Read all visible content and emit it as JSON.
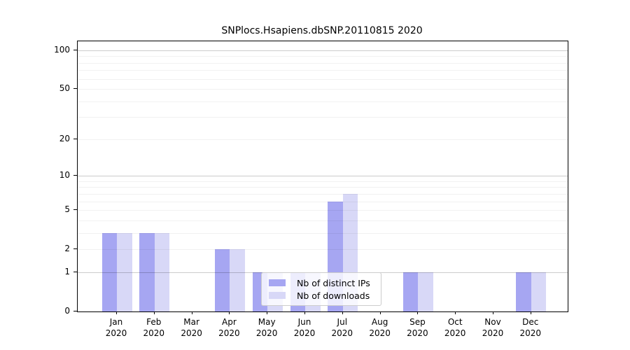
{
  "chart_data": {
    "type": "bar",
    "title": "SNPlocs.Hsapiens.dbSNP.20110815 2020",
    "year_label": "2020",
    "categories": [
      "Jan",
      "Feb",
      "Mar",
      "Apr",
      "May",
      "Jun",
      "Jul",
      "Aug",
      "Sep",
      "Oct",
      "Nov",
      "Dec"
    ],
    "series": [
      {
        "name": "Nb of distinct IPs",
        "color": "#a6a6f2",
        "values": [
          3,
          3,
          0,
          2,
          1,
          1,
          6,
          0,
          1,
          0,
          0,
          1
        ]
      },
      {
        "name": "Nb of downloads",
        "color": "#d8d8f7",
        "values": [
          3,
          3,
          0,
          2,
          1,
          1,
          7,
          0,
          1,
          0,
          0,
          1
        ]
      }
    ],
    "scale": "log1p",
    "ylim": [
      0,
      100
    ],
    "y_ticks": [
      0,
      1,
      2,
      5,
      10,
      20,
      50,
      100
    ],
    "grid_light": [
      2,
      3,
      4,
      5,
      6,
      7,
      8,
      9,
      20,
      30,
      40,
      50,
      60,
      70,
      80,
      90
    ],
    "grid_dark": [
      1,
      10,
      100
    ],
    "grid": "horizontal",
    "legend_position": "lower center"
  }
}
